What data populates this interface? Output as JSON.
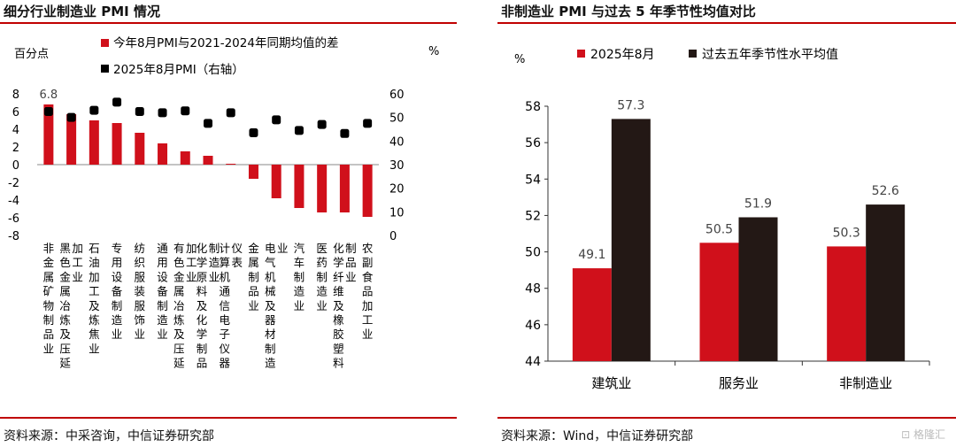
{
  "left": {
    "title": "细分行业制造业 PMI 情况",
    "source": "资料来源：中采咨询，中信证券研究部",
    "chart_data": {
      "type": "bar",
      "ylabel_left": "百分点",
      "ylabel_right": "%",
      "ylim_left": [
        -8,
        8
      ],
      "yticks_left": [
        -8,
        -6,
        -4,
        -2,
        0,
        2,
        4,
        6,
        8
      ],
      "ylim_right": [
        0,
        60
      ],
      "yticks_right": [
        0,
        10,
        20,
        30,
        40,
        50,
        60
      ],
      "legend_position": "top",
      "categories": [
        "非金属矿物制品业",
        "黑色金属冶炼及压延加工业",
        "石油加工及炼焦业",
        "专用设备制造业",
        "纺织服装服饰业",
        "通用设备制造业",
        "有色金属冶炼及压延加工业",
        "化学原料及化学制品制造业",
        "计算机通信电子仪器仪表",
        "金属制品业",
        "电气机械及器材制造业",
        "汽车制造业",
        "医药制造业",
        "化学纤维及橡胶塑料制品业",
        "农副食品加工业"
      ],
      "series": [
        {
          "name": "今年8月PMI与2021-2024年同期均值的差",
          "type": "bar",
          "axis": "left",
          "color": "#d0101b",
          "values": [
            6.8,
            5.7,
            5.0,
            4.7,
            3.6,
            2.4,
            1.5,
            1.0,
            0.1,
            -1.6,
            -3.8,
            -4.9,
            -5.4,
            -5.4,
            -5.9
          ]
        },
        {
          "name": "2025年8月PMI（右轴）",
          "type": "scatter",
          "axis": "right",
          "color": "#000000",
          "values": [
            52.5,
            50.0,
            53.0,
            56.5,
            52.5,
            52.0,
            52.8,
            47.5,
            52.0,
            43.5,
            49.0,
            44.5,
            47.0,
            43.2,
            47.5
          ]
        }
      ],
      "data_labels": [
        {
          "index": 0,
          "text": "6.8"
        }
      ]
    }
  },
  "right": {
    "title": "非制造业 PMI 与过去 5 年季节性均值对比",
    "source": "资料来源：Wind，中信证券研究部",
    "chart_data": {
      "type": "bar",
      "ylabel": "%",
      "ylim": [
        44,
        58
      ],
      "yticks": [
        44,
        46,
        48,
        50,
        52,
        54,
        56,
        58
      ],
      "legend_position": "top",
      "categories": [
        "建筑业",
        "服务业",
        "非制造业"
      ],
      "series": [
        {
          "name": "2025年8月",
          "color": "#d0101b",
          "values": [
            49.1,
            50.5,
            50.3
          ]
        },
        {
          "name": "过去五年季节性水平均值",
          "color": "#231815",
          "values": [
            57.3,
            51.9,
            52.6
          ]
        }
      ]
    }
  },
  "watermark": "格隆汇"
}
